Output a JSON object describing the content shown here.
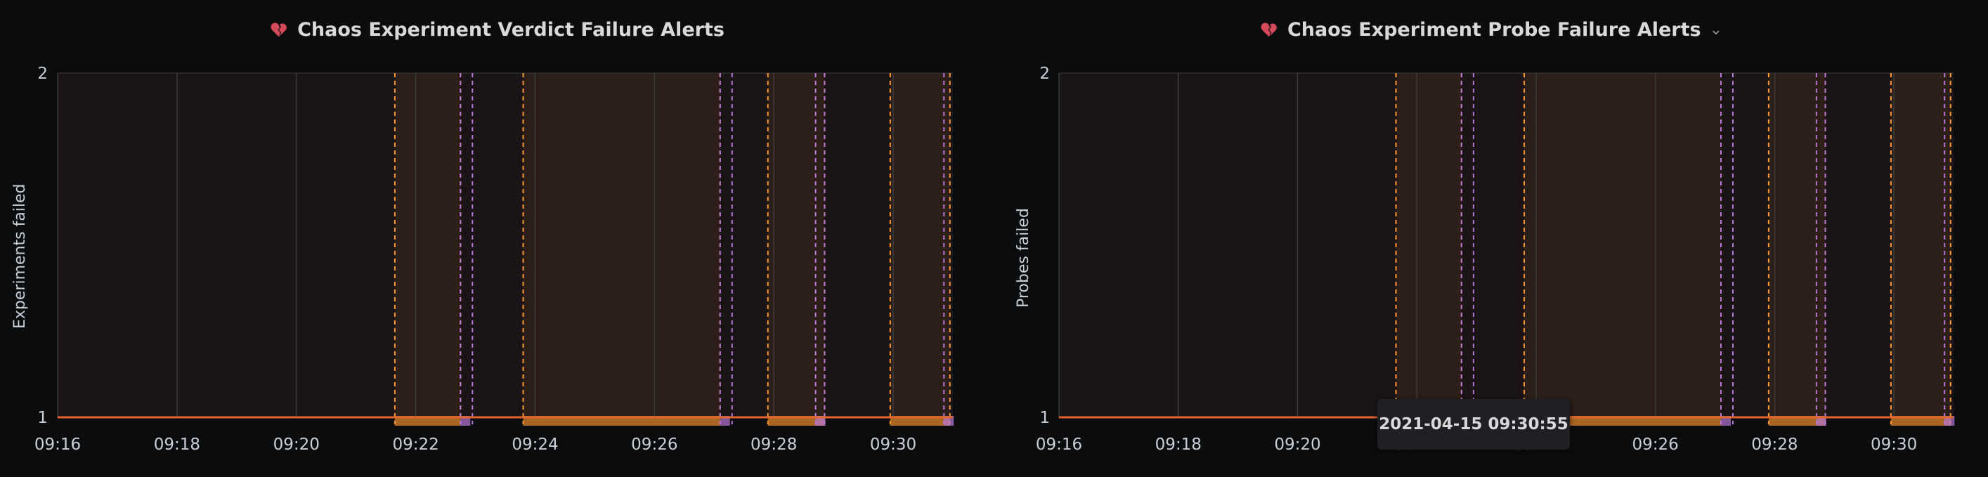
{
  "icons": {
    "panel_icon": "broken-heart-icon",
    "menu_icon": "chevron-down-icon"
  },
  "colors": {
    "background": "#0b0c0e",
    "plot_fill": "#1b1416",
    "grid": "#3b3b3b",
    "threshold": "#e0662e",
    "annotation_orange": "#ff9830",
    "annotation_purple": "#b877d9",
    "alert_region": "rgba(255,152,48,0.08)",
    "ok_region": "rgba(90,60,140,0.08)"
  },
  "tooltip": {
    "text": "2021-04-15 09:30:55"
  },
  "chart_data": [
    {
      "type": "line",
      "title": "Chaos Experiment Verdict Failure Alerts",
      "ylabel": "Experiments failed",
      "xlabel": "",
      "ylim": [
        1,
        2
      ],
      "y_ticks": [
        "1",
        "2"
      ],
      "x_ticks": [
        "09:16",
        "09:18",
        "09:20",
        "09:22",
        "09:24",
        "09:26",
        "09:28",
        "09:30"
      ],
      "x_tick_minutes": [
        16,
        18,
        20,
        22,
        24,
        26,
        28,
        30
      ],
      "x_range_minutes": [
        16,
        31
      ],
      "grid": true,
      "series": [
        {
          "x_minutes": [
            16,
            31
          ],
          "values": [
            1,
            1
          ]
        }
      ],
      "alert_regions": [
        {
          "start": 21.65,
          "end": 22.75
        },
        {
          "start": 23.8,
          "end": 27.1
        },
        {
          "start": 27.9,
          "end": 28.85
        },
        {
          "start": 29.95,
          "end": 30.95
        }
      ],
      "ok_annotations": [
        22.75,
        22.95,
        27.1,
        27.3,
        28.7,
        28.85,
        30.85
      ]
    },
    {
      "type": "line",
      "title": "Chaos Experiment Probe Failure Alerts",
      "ylabel": "Probes failed",
      "xlabel": "",
      "ylim": [
        1,
        2
      ],
      "y_ticks": [
        "1",
        "2"
      ],
      "x_ticks": [
        "09:16",
        "09:18",
        "09:20",
        "09:22",
        "09:24",
        "09:26",
        "09:28",
        "09:30"
      ],
      "x_tick_minutes": [
        16,
        18,
        20,
        22,
        24,
        26,
        28,
        30
      ],
      "x_range_minutes": [
        16,
        31
      ],
      "grid": true,
      "series": [
        {
          "x_minutes": [
            16,
            31
          ],
          "values": [
            1,
            1
          ]
        }
      ],
      "alert_regions": [
        {
          "start": 21.65,
          "end": 22.75
        },
        {
          "start": 23.8,
          "end": 27.1
        },
        {
          "start": 27.9,
          "end": 28.85
        },
        {
          "start": 29.95,
          "end": 30.95
        }
      ],
      "ok_annotations": [
        22.75,
        22.95,
        27.1,
        27.3,
        28.7,
        28.85,
        30.85
      ]
    }
  ]
}
